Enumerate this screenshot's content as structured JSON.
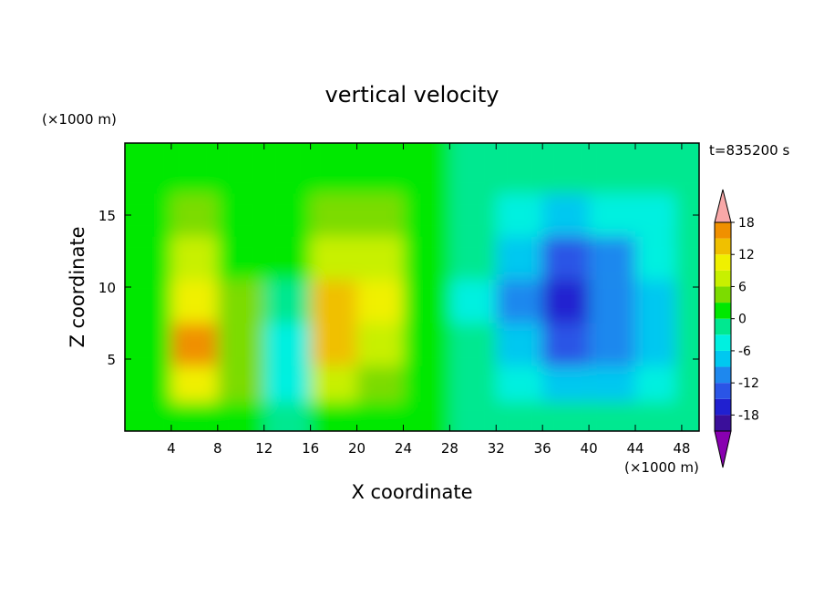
{
  "chart_data": {
    "type": "heatmap",
    "title": "vertical velocity",
    "xlabel": "X coordinate",
    "ylabel": "Z coordinate",
    "x_unit": "(×1000 m)",
    "z_unit": "(×1000 m)",
    "time_label": "t=835200 s",
    "xlim": [
      0,
      49.5
    ],
    "ylim": [
      0,
      20
    ],
    "x_ticks": [
      4,
      8,
      12,
      16,
      20,
      24,
      28,
      32,
      36,
      40,
      44,
      48
    ],
    "y_ticks": [
      5,
      10,
      15
    ],
    "colorbar": {
      "levels": [
        -21,
        -18,
        -15,
        -12,
        -9,
        -6,
        -3,
        0,
        3,
        6,
        9,
        12,
        15,
        18
      ],
      "tick_labels": [
        18,
        12,
        6,
        0,
        -6,
        -12,
        -18
      ],
      "colors": [
        "#8800b0",
        "#3a0f9a",
        "#2020d0",
        "#2a55e6",
        "#1e88ee",
        "#00c8f0",
        "#00f0e0",
        "#00e890",
        "#00e800",
        "#7cdc00",
        "#c8f000",
        "#f0f000",
        "#f0c000",
        "#f09000",
        "#f05000",
        "#e81818",
        "#f8a8a8"
      ]
    },
    "cells": [
      {
        "x": 2,
        "z": 18,
        "w": 0.3
      },
      {
        "x": 6,
        "z": 18,
        "w": 0.8
      },
      {
        "x": 10,
        "z": 18,
        "w": 0.6
      },
      {
        "x": 14,
        "z": 18,
        "w": 1.2
      },
      {
        "x": 18,
        "z": 18,
        "w": 1.8
      },
      {
        "x": 22,
        "z": 18,
        "w": 1.5
      },
      {
        "x": 26,
        "z": 18,
        "w": 0.6
      },
      {
        "x": 30,
        "z": 18,
        "w": -0.5
      },
      {
        "x": 34,
        "z": 18,
        "w": -1.2
      },
      {
        "x": 38,
        "z": 18,
        "w": -1.5
      },
      {
        "x": 42,
        "z": 18,
        "w": -1.4
      },
      {
        "x": 46,
        "z": 18,
        "w": -1.0
      },
      {
        "x": 49,
        "z": 18,
        "w": -0.6
      },
      {
        "x": 2,
        "z": 15,
        "w": 1.0
      },
      {
        "x": 6,
        "z": 15,
        "w": 3.2
      },
      {
        "x": 10,
        "z": 15,
        "w": 1.5
      },
      {
        "x": 14,
        "z": 15,
        "w": 1.0
      },
      {
        "x": 18,
        "z": 15,
        "w": 4.0
      },
      {
        "x": 22,
        "z": 15,
        "w": 3.5
      },
      {
        "x": 26,
        "z": 15,
        "w": 1.0
      },
      {
        "x": 30,
        "z": 15,
        "w": -1.5
      },
      {
        "x": 34,
        "z": 15,
        "w": -4.5
      },
      {
        "x": 38,
        "z": 15,
        "w": -7.0
      },
      {
        "x": 42,
        "z": 15,
        "w": -6.0
      },
      {
        "x": 46,
        "z": 15,
        "w": -3.5
      },
      {
        "x": 49,
        "z": 15,
        "w": -1.2
      },
      {
        "x": 2,
        "z": 12,
        "w": 1.2
      },
      {
        "x": 6,
        "z": 12,
        "w": 6.5
      },
      {
        "x": 10,
        "z": 12,
        "w": 2.0
      },
      {
        "x": 14,
        "z": 12,
        "w": 0.5
      },
      {
        "x": 18,
        "z": 12,
        "w": 8.0
      },
      {
        "x": 22,
        "z": 12,
        "w": 6.0
      },
      {
        "x": 26,
        "z": 12,
        "w": 1.5
      },
      {
        "x": 30,
        "z": 12,
        "w": -2.5
      },
      {
        "x": 34,
        "z": 12,
        "w": -8.0
      },
      {
        "x": 38,
        "z": 12,
        "w": -12.5
      },
      {
        "x": 42,
        "z": 12,
        "w": -10.0
      },
      {
        "x": 46,
        "z": 12,
        "w": -5.5
      },
      {
        "x": 49,
        "z": 12,
        "w": -1.5
      },
      {
        "x": 2,
        "z": 9,
        "w": 1.5
      },
      {
        "x": 6,
        "z": 9,
        "w": 11.0
      },
      {
        "x": 10,
        "z": 9,
        "w": 3.0
      },
      {
        "x": 14,
        "z": 9,
        "w": -1.5
      },
      {
        "x": 18,
        "z": 9,
        "w": 14.5
      },
      {
        "x": 22,
        "z": 9,
        "w": 9.0
      },
      {
        "x": 26,
        "z": 9,
        "w": 2.0
      },
      {
        "x": 30,
        "z": 9,
        "w": -3.5
      },
      {
        "x": 34,
        "z": 9,
        "w": -10.0
      },
      {
        "x": 38,
        "z": 9,
        "w": -15.5
      },
      {
        "x": 42,
        "z": 9,
        "w": -12.0
      },
      {
        "x": 46,
        "z": 9,
        "w": -6.5
      },
      {
        "x": 49,
        "z": 9,
        "w": -2.0
      },
      {
        "x": 2,
        "z": 6,
        "w": 1.5
      },
      {
        "x": 6,
        "z": 6,
        "w": 16.5
      },
      {
        "x": 10,
        "z": 6,
        "w": 4.0
      },
      {
        "x": 14,
        "z": 6,
        "w": -4.5
      },
      {
        "x": 18,
        "z": 6,
        "w": 12.5
      },
      {
        "x": 22,
        "z": 6,
        "w": 7.5
      },
      {
        "x": 26,
        "z": 6,
        "w": 2.0
      },
      {
        "x": 30,
        "z": 6,
        "w": -3.0
      },
      {
        "x": 34,
        "z": 6,
        "w": -8.5
      },
      {
        "x": 38,
        "z": 6,
        "w": -14.5
      },
      {
        "x": 42,
        "z": 6,
        "w": -11.5
      },
      {
        "x": 46,
        "z": 6,
        "w": -6.5
      },
      {
        "x": 49,
        "z": 6,
        "w": -2.0
      },
      {
        "x": 2,
        "z": 3,
        "w": 1.0
      },
      {
        "x": 6,
        "z": 3,
        "w": 9.0
      },
      {
        "x": 10,
        "z": 3,
        "w": 3.0
      },
      {
        "x": 14,
        "z": 3,
        "w": -6.0
      },
      {
        "x": 18,
        "z": 3,
        "w": 6.0
      },
      {
        "x": 22,
        "z": 3,
        "w": 4.5
      },
      {
        "x": 26,
        "z": 3,
        "w": 1.5
      },
      {
        "x": 30,
        "z": 3,
        "w": -1.5
      },
      {
        "x": 34,
        "z": 3,
        "w": -5.5
      },
      {
        "x": 38,
        "z": 3,
        "w": -8.0
      },
      {
        "x": 42,
        "z": 3,
        "w": -7.0
      },
      {
        "x": 46,
        "z": 3,
        "w": -4.0
      },
      {
        "x": 49,
        "z": 3,
        "w": -1.5
      },
      {
        "x": 2,
        "z": 1,
        "w": 0.3
      },
      {
        "x": 6,
        "z": 1,
        "w": 2.0
      },
      {
        "x": 10,
        "z": 1,
        "w": 1.0
      },
      {
        "x": 14,
        "z": 1,
        "w": -2.0
      },
      {
        "x": 18,
        "z": 1,
        "w": 1.5
      },
      {
        "x": 22,
        "z": 1,
        "w": 1.5
      },
      {
        "x": 26,
        "z": 1,
        "w": 0.5
      },
      {
        "x": 30,
        "z": 1,
        "w": -0.5
      },
      {
        "x": 34,
        "z": 1,
        "w": -1.8
      },
      {
        "x": 38,
        "z": 1,
        "w": -2.5
      },
      {
        "x": 42,
        "z": 1,
        "w": -2.2
      },
      {
        "x": 46,
        "z": 1,
        "w": -1.5
      },
      {
        "x": 49,
        "z": 1,
        "w": -0.5
      }
    ]
  }
}
